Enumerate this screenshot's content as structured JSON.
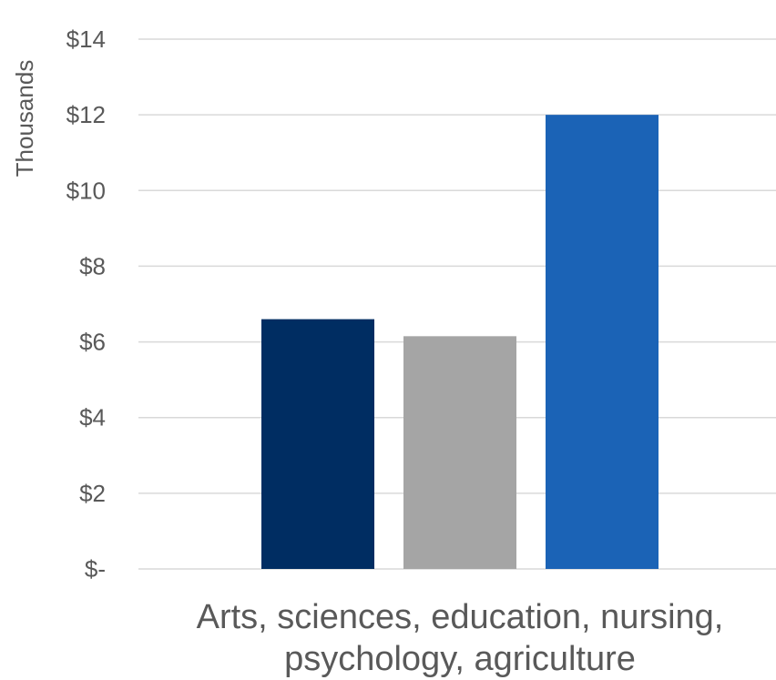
{
  "chart_data": {
    "type": "bar",
    "title": "",
    "xlabel": "",
    "ylabel": "Thousands",
    "categories": [
      "Arts, sciences, education, nursing, psychology, agriculture"
    ],
    "category_lines": [
      "Arts, sciences, education, nursing,",
      "psychology, agriculture"
    ],
    "series": [
      {
        "values": [
          6.6
        ],
        "color": "#002d62"
      },
      {
        "values": [
          6.15
        ],
        "color": "#a5a5a5"
      },
      {
        "values": [
          12.0
        ],
        "color": "#1b63b6"
      }
    ],
    "ylim": [
      0,
      14
    ],
    "yticks": [
      0,
      2,
      4,
      6,
      8,
      10,
      12,
      14
    ],
    "ytick_labels": [
      "$-",
      "$2",
      "$4",
      "$6",
      "$8",
      "$10",
      "$12",
      "$14"
    ],
    "grid": true,
    "legend": "none",
    "grid_color": "#d9d9d9",
    "text_color": "#595959"
  }
}
